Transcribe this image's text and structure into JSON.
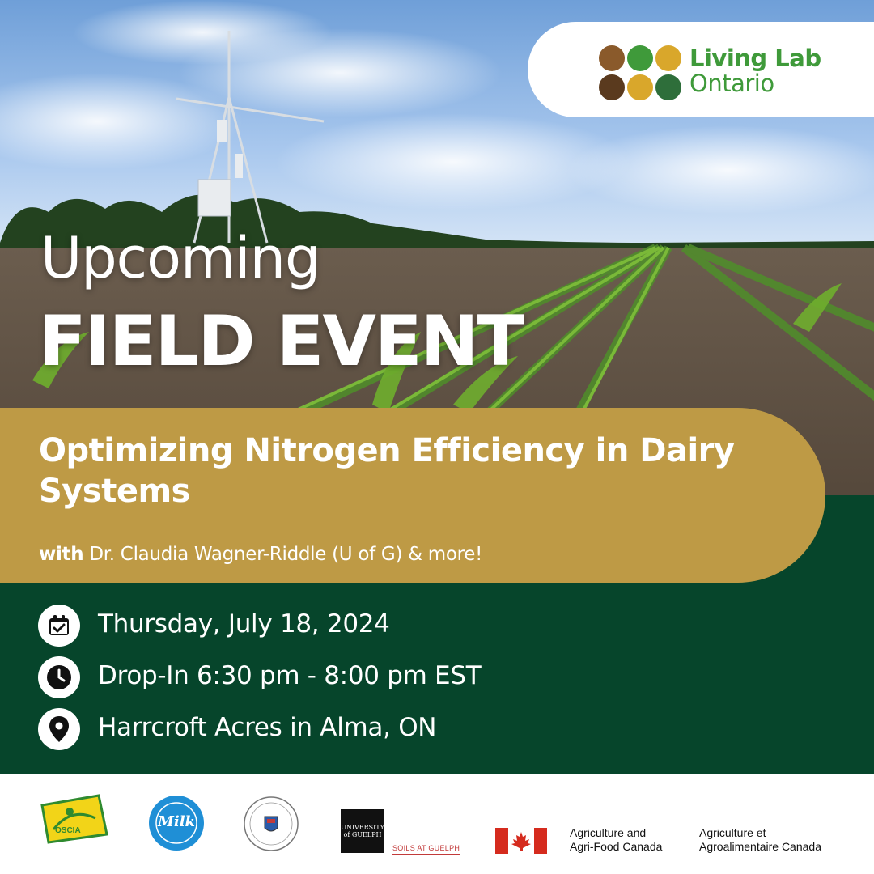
{
  "brand": {
    "line1": "Living Lab",
    "line2": "Ontario",
    "color": "#3f9a3a",
    "icon_colors": [
      "#8a5a2b",
      "#3f9a3a",
      "#d9a72b",
      "#5a3a1e",
      "#d9a72b",
      "#2e6e3a"
    ]
  },
  "headline": {
    "line1": "Upcoming",
    "line2": "FIELD EVENT"
  },
  "event": {
    "title": "Optimizing Nitrogen Efficiency in Dairy Systems",
    "speaker_prefix": "with",
    "speaker": "Dr. Claudia Wagner-Riddle (U of G) & more!"
  },
  "details": [
    {
      "icon": "calendar-check-icon",
      "text": "Thursday, July 18, 2024"
    },
    {
      "icon": "clock-icon",
      "text": "Drop-In 6:30 pm - 8:00 pm EST"
    },
    {
      "icon": "map-pin-icon",
      "text": "Harrcroft Acres in Alma, ON"
    }
  ],
  "sponsors": {
    "oscia": "OSCIA",
    "dfo": "Milk",
    "guelph_box": "UNIVERSITY of GUELPH",
    "guelph_soils": "SOILS AT GUELPH",
    "aafc_en_1": "Agriculture and",
    "aafc_en_2": "Agri-Food Canada",
    "aafc_fr_1": "Agriculture et",
    "aafc_fr_2": "Agroalimentaire Canada"
  },
  "colors": {
    "green_panel": "#06452b",
    "gold_banner": "#be9a45",
    "white": "#ffffff"
  }
}
